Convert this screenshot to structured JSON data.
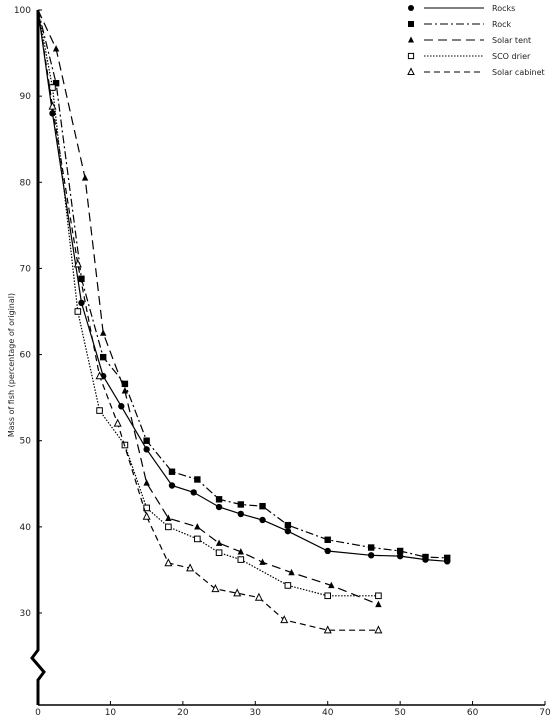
{
  "chart_data": {
    "type": "line",
    "title": "",
    "xlabel": "",
    "ylabel": "Mass of fish (percentage of original)",
    "xlim": [
      0,
      70
    ],
    "ylim": [
      20,
      100
    ],
    "y_axis_break": true,
    "x_ticks": [
      "0",
      "10",
      "20",
      "30",
      "40",
      "50",
      "60",
      "70"
    ],
    "y_ticks": [
      {
        "value": 100,
        "label": "100"
      },
      {
        "value": 90,
        "label": "90"
      },
      {
        "value": 80,
        "label": "80"
      },
      {
        "value": 70,
        "label": "70"
      },
      {
        "value": 60,
        "label": "60"
      },
      {
        "value": 50,
        "label": "50"
      },
      {
        "value": 40,
        "label": "40"
      },
      {
        "value": 30,
        "label": "30"
      }
    ],
    "legend_position": "top-right",
    "grid": false,
    "series": [
      {
        "name": "Rocks",
        "marker": "filled-circle",
        "dash": "solid",
        "x": [
          0,
          2,
          6,
          9,
          11.5,
          15,
          18.5,
          21.5,
          25,
          28,
          31,
          34.5,
          40,
          46,
          50,
          53.5,
          56.5
        ],
        "y": [
          100,
          88,
          66,
          57.5,
          54,
          49,
          44.8,
          44,
          42.3,
          41.5,
          40.8,
          39.5,
          37.2,
          36.7,
          36.6,
          36.2,
          36
        ]
      },
      {
        "name": "Rock",
        "marker": "filled-square",
        "dash": "dash-dot",
        "x": [
          0,
          2.5,
          6,
          9,
          12,
          15,
          18.5,
          22,
          25,
          28,
          31,
          34.5,
          40,
          46,
          50,
          53.5,
          56.5
        ],
        "y": [
          100,
          91.5,
          68.8,
          59.7,
          56.6,
          50,
          46.4,
          45.5,
          43.2,
          42.6,
          42.4,
          40.2,
          38.5,
          37.6,
          37.2,
          36.5,
          36.4
        ]
      },
      {
        "name": "Solar tent",
        "marker": "filled-triangle",
        "dash": "long-dash",
        "x": [
          0,
          2.5,
          6.5,
          9,
          12,
          15,
          18,
          22,
          25,
          28,
          31,
          35,
          40.5,
          47
        ],
        "y": [
          100,
          95.5,
          80.5,
          62.5,
          55.8,
          45.1,
          41,
          40,
          38.1,
          37.1,
          35.9,
          34.7,
          33.2,
          31
        ]
      },
      {
        "name": "SCO drier",
        "marker": "open-square",
        "dash": "dotted",
        "x": [
          0,
          2,
          5.5,
          8.5,
          12,
          15,
          18,
          22,
          25,
          28,
          34.5,
          40,
          47
        ],
        "y": [
          100,
          91,
          65,
          53.5,
          49.5,
          42.2,
          40,
          38.6,
          37,
          36.2,
          33.2,
          32,
          32
        ]
      },
      {
        "name": "Solar cabinet",
        "marker": "open-triangle",
        "dash": "dashed",
        "x": [
          0,
          2,
          5.5,
          8.5,
          11,
          15,
          18,
          21,
          24.5,
          27.5,
          30.5,
          34,
          40,
          47
        ],
        "y": [
          100,
          88.8,
          70.5,
          57.5,
          52,
          41.2,
          35.8,
          35.2,
          32.8,
          32.3,
          31.8,
          29.2,
          28,
          28
        ]
      }
    ]
  }
}
